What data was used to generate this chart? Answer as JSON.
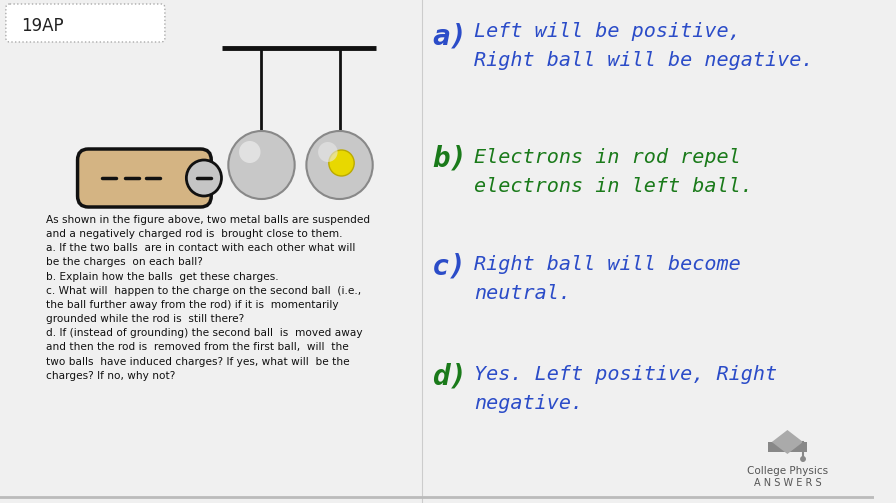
{
  "background_color": "#f0f0f0",
  "title_box_text": "19AP",
  "title_box_color": "#ffffff",
  "title_box_border": "#aaaaaa",
  "problem_text": "As shown in the figure above, two metal balls are suspended\nand a negatively charged rod is  brought close to them.\na. If the two balls  are in contact with each other what will\nbe the charges  on each ball?\nb. Explain how the balls  get these charges.\nc. What will  happen to the charge on the second ball  (i.e.,\nthe ball further away from the rod) if it is  momentarily\ngrounded while the rod is  still there?\nd. If (instead of grounding) the second ball  is  moved away\nand then the rod is  removed from the first ball,  will  the\ntwo balls  have induced charges? If yes, what will  be the\ncharges? If no, why not?",
  "answer_a_letter": "a)",
  "answer_a_text": "Left will be positive,\nRight ball will be negative.",
  "answer_b_letter": "b)",
  "answer_b_text": "Electrons in rod repel\nelectrons in left ball.",
  "answer_c_letter": "c)",
  "answer_c_text": "Right ball will become\nneutral.",
  "answer_d_letter": "d)",
  "answer_d_text": "Yes. Left positive, Right\nnegative.",
  "color_blue": "#2b4cc8",
  "color_green": "#1a7a1a",
  "rod_fill": "#d4b483",
  "rod_border": "#111111",
  "ball_color": "#c8c8c8",
  "ball_highlight": "#e8e8e8",
  "yellow_dot": "#e8d800",
  "string_color": "#111111",
  "bar_color": "#111111",
  "cpa_text_color": "#555555",
  "logo_gray": "#999999",
  "bottom_border": "#bbbbbb"
}
